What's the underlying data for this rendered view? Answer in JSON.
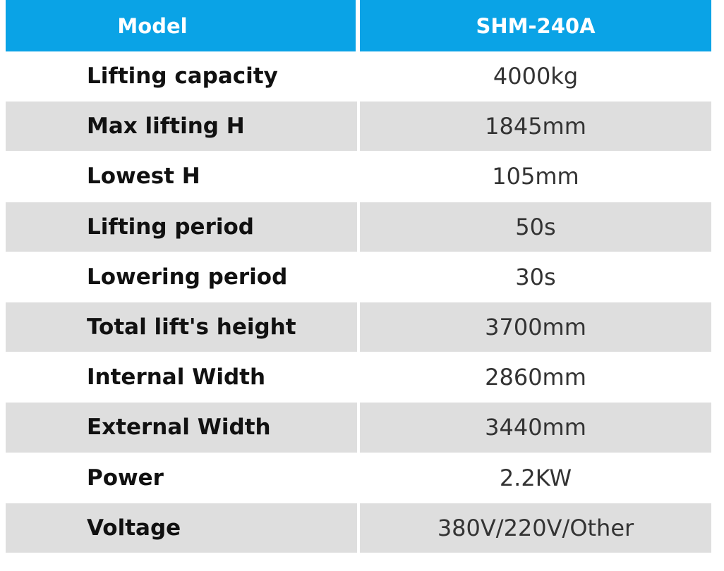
{
  "table": {
    "header": [
      "Model",
      "SHM-240A"
    ],
    "rows": [
      [
        "Lifting capacity",
        "4000kg"
      ],
      [
        "Max lifting H",
        "1845mm"
      ],
      [
        "Lowest H",
        "105mm"
      ],
      [
        "Lifting period",
        "50s"
      ],
      [
        "Lowering period",
        "30s"
      ],
      [
        "Total lift's height",
        "3700mm"
      ],
      [
        "Internal Width",
        "2860mm"
      ],
      [
        "External Width",
        "3440mm"
      ],
      [
        "Power",
        "2.2KW"
      ],
      [
        "Voltage",
        "380V/220V/Other"
      ]
    ]
  }
}
